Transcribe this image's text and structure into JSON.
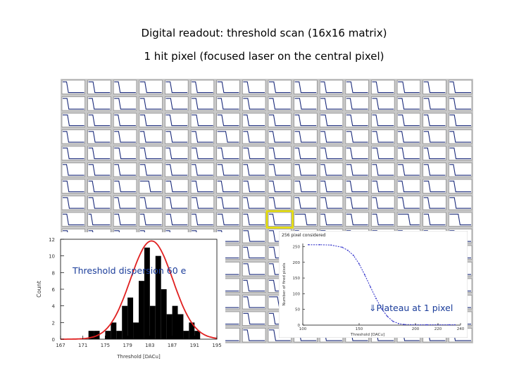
{
  "title_line1": "Digital readout: threshold scan (16x16 matrix)",
  "title_line2": "1 hit pixel (focused laser on the central pixel)",
  "matrix": {
    "rows": 16,
    "cols": 16,
    "highlight_row": 8,
    "highlight_col": 8,
    "highlight_color": "#e8e000"
  },
  "dispersion_label": "Threshold dispersion 60 e",
  "plateau_label": "⇓Plateau at 1 pixel",
  "chart_data": [
    {
      "type": "bar",
      "xlabel": "Threshold [DACu]",
      "ylabel": "Count",
      "xlim": [
        167,
        195
      ],
      "ylim": [
        0,
        12
      ],
      "xticks": [
        "167",
        "171",
        "175",
        "179",
        "183",
        "187",
        "191",
        "195"
      ],
      "yticks": [
        "0",
        "2",
        "4",
        "6",
        "8",
        "10",
        "12"
      ],
      "bin_start": 172,
      "bin_width": 1,
      "values": [
        1,
        1,
        0,
        1,
        2,
        1,
        4,
        5,
        2,
        7,
        11,
        4,
        10,
        6,
        3,
        4,
        3,
        1,
        2,
        1
      ],
      "fit": {
        "mean": 183.3,
        "sigma": 3.8,
        "amplitude": 11.8,
        "color": "#e02020"
      },
      "bar_color": "#000000"
    },
    {
      "type": "line",
      "title": "256 pixel considered",
      "xlabel": "Threshold [DACu]",
      "ylabel": "Number of fired pixels",
      "xlim": [
        100,
        240
      ],
      "ylim": [
        0,
        260
      ],
      "xticks": [
        "100",
        "150",
        "200",
        "220",
        "240"
      ],
      "yticks": [
        "0",
        "50",
        "100",
        "150",
        "200",
        "250"
      ],
      "x": [
        105,
        115,
        125,
        135,
        140,
        145,
        150,
        155,
        160,
        165,
        170,
        175,
        180,
        185,
        190,
        200,
        210,
        220,
        230,
        235
      ],
      "y": [
        256,
        256,
        255,
        248,
        238,
        222,
        195,
        160,
        122,
        85,
        52,
        28,
        12,
        5,
        2,
        1,
        1,
        1,
        1,
        1
      ],
      "color": "#3a3acc"
    }
  ]
}
